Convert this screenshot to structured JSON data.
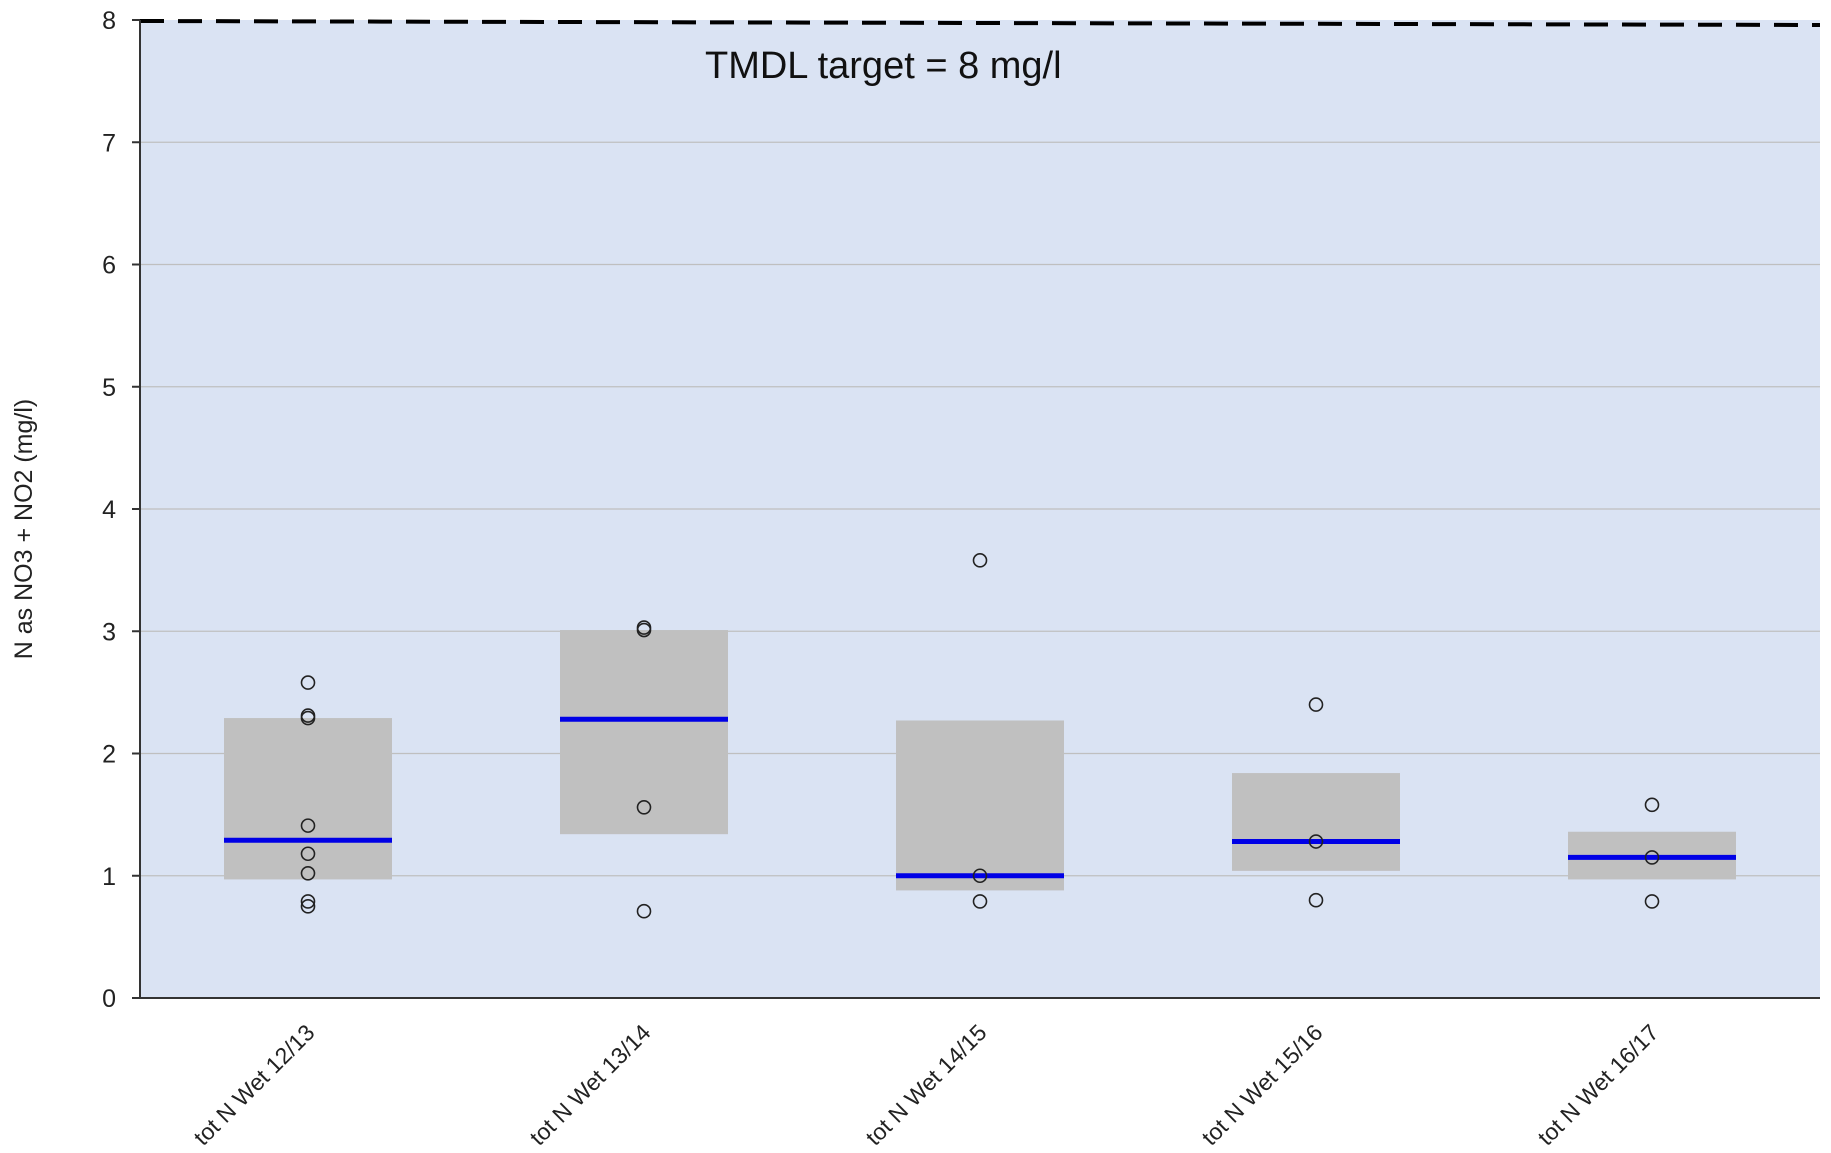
{
  "chart_data": {
    "type": "box",
    "title": "",
    "xlabel": "",
    "ylabel": "N as NO3 + NO2 (mg/l)",
    "ylim": [
      0,
      8
    ],
    "yticks": [
      "0",
      "1",
      "2",
      "3",
      "4",
      "5",
      "6",
      "7",
      "8"
    ],
    "grid": true,
    "categories": [
      "tot N Wet 12/13",
      "tot N Wet 13/14",
      "tot N Wet 14/15",
      "tot N Wet 15/16",
      "tot N Wet 16/17"
    ],
    "boxes": [
      {
        "q1": 0.97,
        "median": 1.29,
        "q3": 2.29,
        "points": [
          2.58,
          2.31,
          2.29,
          1.41,
          1.18,
          1.02,
          0.79,
          0.75
        ]
      },
      {
        "q1": 1.34,
        "median": 2.28,
        "q3": 3.01,
        "points": [
          3.03,
          3.01,
          1.56,
          0.71
        ]
      },
      {
        "q1": 0.88,
        "median": 1.0,
        "q3": 2.27,
        "points": [
          3.58,
          1.0,
          0.79
        ]
      },
      {
        "q1": 1.04,
        "median": 1.28,
        "q3": 1.84,
        "points": [
          2.4,
          1.28,
          0.8
        ]
      },
      {
        "q1": 0.97,
        "median": 1.15,
        "q3": 1.36,
        "points": [
          1.58,
          1.15,
          0.79
        ]
      }
    ],
    "reference_line": {
      "value": 8,
      "style": "dashed",
      "label": "TMDL target = 8 mg/l"
    },
    "colors": {
      "plot_background": "#dae3f3",
      "box_fill": "#c0c0c0",
      "median_line": "#0000e6",
      "gridline": "#bfbfbf",
      "axis": "#333333",
      "point_stroke": "#222222"
    }
  }
}
